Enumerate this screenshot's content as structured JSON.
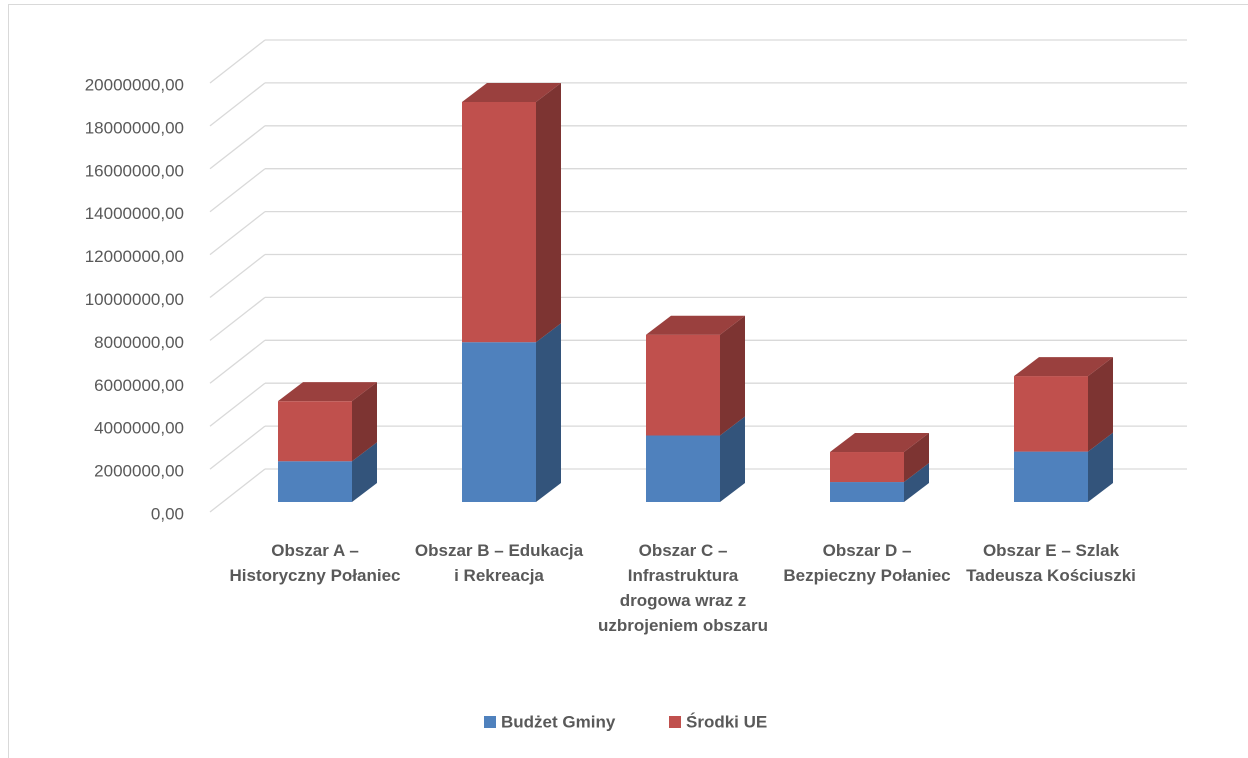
{
  "chart_data": {
    "type": "bar3d_stacked",
    "categories": [
      "Obszar A – Historyczny Połaniec",
      "Obszar B – Edukacja i Rekreacja",
      "Obszar C – Infrastruktura drogowa wraz z uzbrojeniem obszaru",
      "Obszar D – Bezpieczny Połaniec",
      "Obszar E – Szlak Tadeusza Kościuszki"
    ],
    "series": [
      {
        "name": "Budżet Gminy",
        "color": "#4f81bd",
        "values": [
          1900000,
          7450000,
          3100000,
          930000,
          2350000
        ]
      },
      {
        "name": "Środki UE",
        "color": "#c0504d",
        "values": [
          2800000,
          11200000,
          4700000,
          1400000,
          3520000
        ]
      }
    ],
    "ylim": [
      0,
      20000000
    ],
    "yticks": [
      {
        "value": 0,
        "label": "0,00"
      },
      {
        "value": 2000000,
        "label": "2000000,00"
      },
      {
        "value": 4000000,
        "label": "4000000,00"
      },
      {
        "value": 6000000,
        "label": "6000000,00"
      },
      {
        "value": 8000000,
        "label": "8000000,00"
      },
      {
        "value": 10000000,
        "label": "10000000,00"
      },
      {
        "value": 12000000,
        "label": "12000000,00"
      },
      {
        "value": 14000000,
        "label": "14000000,00"
      },
      {
        "value": 16000000,
        "label": "16000000,00"
      },
      {
        "value": 18000000,
        "label": "18000000,00"
      },
      {
        "value": 20000000,
        "label": "20000000,00"
      }
    ],
    "grid": true,
    "legend": "bottom"
  }
}
